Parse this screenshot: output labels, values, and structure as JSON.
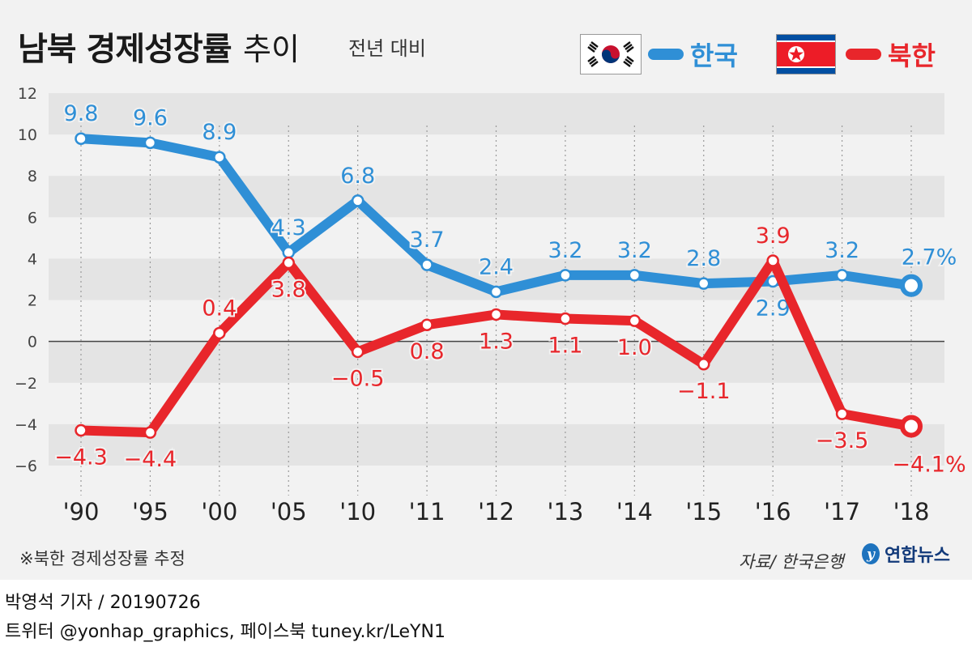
{
  "header": {
    "title": "남북 경제성장률",
    "title_suffix": "추이",
    "subtitle": "전년 대비"
  },
  "legend": {
    "south_label": "한국",
    "north_label": "북한"
  },
  "colors": {
    "south": "#2f8fd6",
    "north": "#e8262b",
    "band": "#e4e4e4",
    "panel": "#f2f2f2"
  },
  "footnote": "※북한 경제성장률 추정",
  "source": "자료/ 한국은행",
  "logo_text": "연합뉴스",
  "credit": {
    "reporter_line": "박영석 기자 /  20190726",
    "social_line": "트위터 @yonhap_graphics, 페이스북 tuney.kr/LeYN1"
  },
  "chart_data": {
    "type": "line",
    "title": "남북 경제성장률 추이",
    "subtitle": "전년 대비",
    "categories": [
      "'90",
      "'95",
      "'00",
      "'05",
      "'10",
      "'11",
      "'12",
      "'13",
      "'14",
      "'15",
      "'16",
      "'17",
      "'18"
    ],
    "ylim": [
      -6,
      12
    ],
    "yticks": [
      "12",
      "10",
      "8",
      "6",
      "4",
      "2",
      "0",
      "−2",
      "−4",
      "−6"
    ],
    "ytick_values": [
      12,
      10,
      8,
      6,
      4,
      2,
      0,
      -2,
      -4,
      -6
    ],
    "grid": "alternating horizontal bands",
    "legend_position": "top-right",
    "series": [
      {
        "name": "한국",
        "values": [
          9.8,
          9.6,
          8.9,
          4.3,
          6.8,
          3.7,
          2.4,
          3.2,
          3.2,
          2.8,
          2.9,
          3.2,
          2.7
        ],
        "labels": [
          "9.8",
          "9.6",
          "8.9",
          "4.3",
          "6.8",
          "3.7",
          "2.4",
          "3.2",
          "3.2",
          "2.8",
          "2.9",
          "3.2",
          "2.7%"
        ],
        "label_placement": [
          "above",
          "above",
          "above",
          "above",
          "above",
          "above",
          "above",
          "above",
          "above",
          "above",
          "below",
          "above",
          "above"
        ]
      },
      {
        "name": "북한",
        "values": [
          -4.3,
          -4.4,
          0.4,
          3.8,
          -0.5,
          0.8,
          1.3,
          1.1,
          1.0,
          -1.1,
          3.9,
          -3.5,
          -4.1
        ],
        "labels": [
          "−4.3",
          "−4.4",
          "0.4",
          "3.8",
          "−0.5",
          "0.8",
          "1.3",
          "1.1",
          "1.0",
          "−1.1",
          "3.9",
          "−3.5",
          "−4.1%"
        ],
        "label_placement": [
          "below",
          "below",
          "above",
          "below",
          "below",
          "below",
          "below",
          "below",
          "below",
          "below",
          "above",
          "below",
          "below"
        ]
      }
    ]
  }
}
